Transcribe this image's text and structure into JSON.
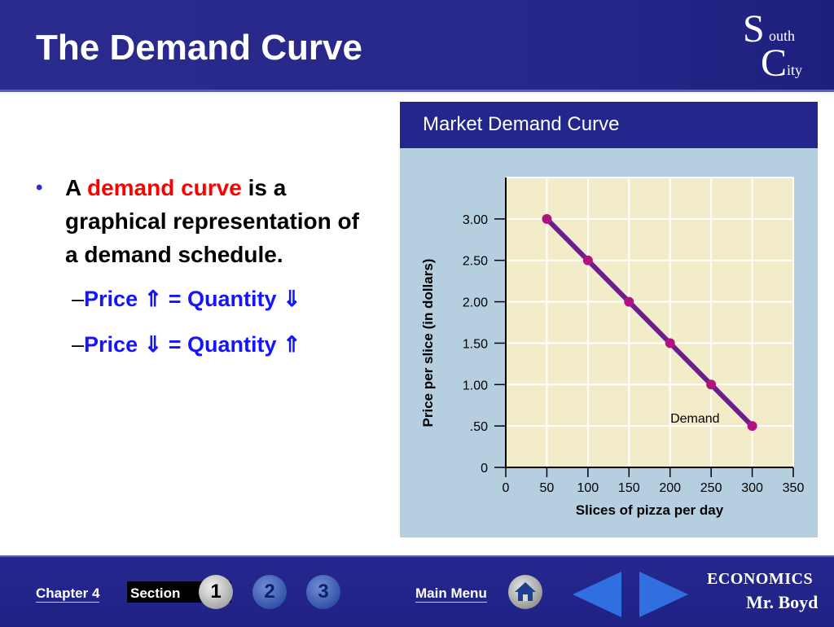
{
  "slide": {
    "title": "The Demand Curve",
    "logo": {
      "s": "S",
      "outh": "outh",
      "c": "C",
      "ity": "ity"
    }
  },
  "bullets": {
    "main_a": "A ",
    "main_term": "demand curve",
    "main_rest": " is a graphical representation of a demand schedule.",
    "sub1_dash": "–",
    "sub1_price": "Price ",
    "sub1_arrow1": "⇑",
    "sub1_eq": " = Quantity ",
    "sub1_arrow2": "⇓",
    "sub2_dash": "–",
    "sub2_price": "Price ",
    "sub2_arrow1": "⇓",
    "sub2_eq": " = Quantity ",
    "sub2_arrow2": "⇑"
  },
  "chart_header": "Market Demand Curve",
  "chart_data": {
    "type": "line",
    "title": "Market Demand Curve",
    "xlabel": "Slices of pizza per day",
    "ylabel": "Price per slice (in dollars)",
    "xlim": [
      0,
      350
    ],
    "ylim": [
      0,
      3.5
    ],
    "x_ticks": [
      0,
      50,
      100,
      150,
      200,
      250,
      300,
      350
    ],
    "x_tick_labels": [
      "0",
      "50",
      "100",
      "150",
      "200",
      "250",
      "300",
      "350"
    ],
    "y_ticks": [
      0,
      0.5,
      1.0,
      1.5,
      2.0,
      2.5,
      3.0
    ],
    "y_tick_labels": [
      "0",
      ".50",
      "1.00",
      "1.50",
      "2.00",
      "2.50",
      "3.00"
    ],
    "grid": true,
    "series": [
      {
        "name": "Demand",
        "x": [
          50,
          100,
          150,
          200,
          250,
          300
        ],
        "y": [
          3.0,
          2.5,
          2.0,
          1.5,
          1.0,
          0.5
        ]
      }
    ],
    "colors": {
      "line": "#6b1f8f",
      "point": "#b0127e",
      "plot_bg": "#f3ecc8",
      "grid": "#ffffff"
    }
  },
  "footer": {
    "chapter": "Chapter 4",
    "section": "Section",
    "sections": [
      "1",
      "2",
      "3"
    ],
    "main_menu": "Main Menu",
    "home_icon": "home-icon",
    "brand_line1": "ECONOMICS",
    "brand_line2": "Mr. Boyd"
  }
}
